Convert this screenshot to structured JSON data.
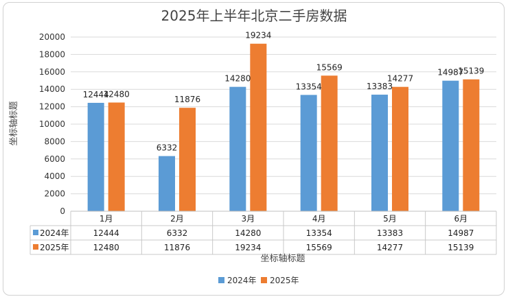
{
  "chart_data": {
    "type": "bar",
    "title": "2025年上半年北京二手房数据",
    "ylabel": "坐标轴标题",
    "xlabel": "坐标轴标题",
    "categories": [
      "1月",
      "2月",
      "3月",
      "4月",
      "5月",
      "6月"
    ],
    "series": [
      {
        "name": "2024年",
        "values": [
          12444,
          6332,
          14280,
          13354,
          13383,
          14987
        ],
        "color": "#5B9BD5"
      },
      {
        "name": "2025年",
        "values": [
          12480,
          11876,
          19234,
          15569,
          14277,
          15139
        ],
        "color": "#ED7D31"
      }
    ],
    "ylim": [
      0,
      20000
    ],
    "yticks": [
      0,
      2000,
      4000,
      6000,
      8000,
      10000,
      12000,
      14000,
      16000,
      18000,
      20000
    ],
    "grid": true,
    "data_table": true,
    "legend": "bottom"
  }
}
